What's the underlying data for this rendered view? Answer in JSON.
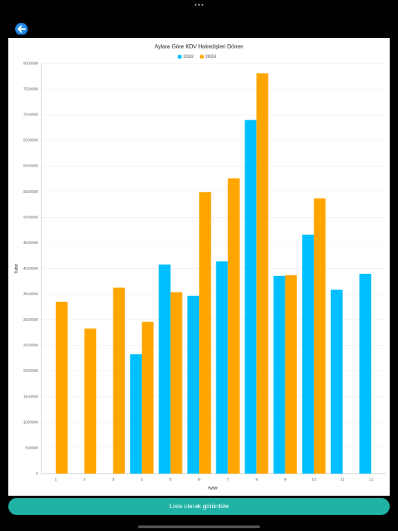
{
  "chart_data": {
    "type": "bar",
    "title": "Aylara Göre KDV Hakedişleri Dönen",
    "x_label": "Aylar",
    "y_label": "Tutar",
    "categories": [
      "1",
      "2",
      "3",
      "4",
      "5",
      "6",
      "7",
      "8",
      "9",
      "10",
      "11",
      "12"
    ],
    "series": [
      {
        "name": "2022",
        "color": "#00bfff",
        "values": [
          null,
          null,
          null,
          2330000,
          4080000,
          3470000,
          4140000,
          6900000,
          3860000,
          4660000,
          3590000,
          3900000
        ]
      },
      {
        "name": "2023",
        "color": "#ffa500",
        "values": [
          3350000,
          2830000,
          3630000,
          2960000,
          3540000,
          5490000,
          5760000,
          7810000,
          3870000,
          5370000,
          null,
          null
        ]
      }
    ],
    "ylim": [
      0,
      8000000
    ],
    "yticks": [
      0,
      500000,
      1000000,
      1500000,
      2000000,
      2500000,
      3000000,
      3500000,
      4000000,
      4500000,
      5000000,
      5500000,
      6000000,
      6500000,
      7000000,
      7500000,
      8000000
    ],
    "grid": true,
    "legend": "top"
  },
  "button": {
    "label": "Liste olarak görüntüle"
  }
}
